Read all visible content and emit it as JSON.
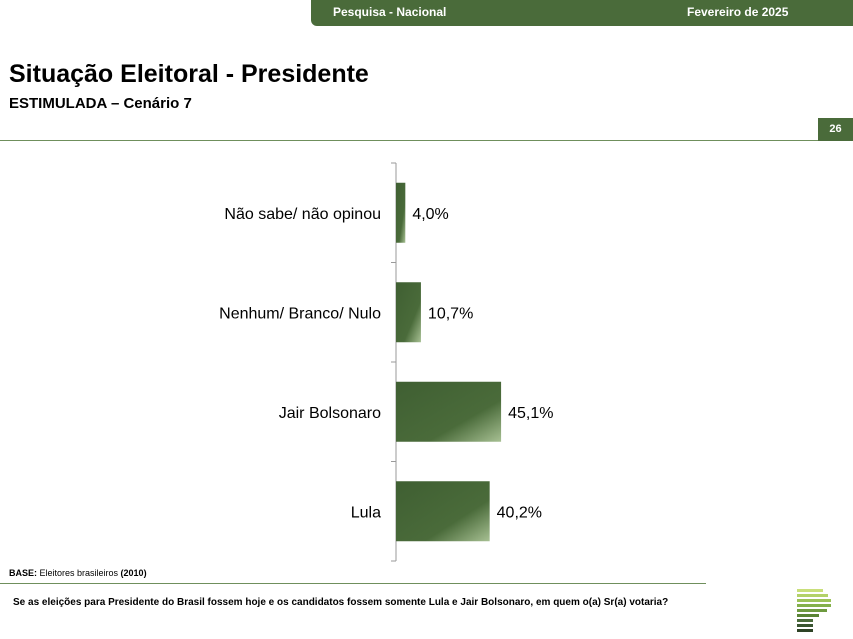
{
  "header": {
    "left_label": "Pesquisa - Nacional",
    "right_label": "Fevereiro de 2025"
  },
  "page": {
    "title": "Situação Eleitoral - Presidente",
    "subtitle": "ESTIMULADA – Cenário 7",
    "page_number": "26"
  },
  "chart_data": {
    "type": "bar",
    "orientation": "horizontal",
    "categories": [
      "Não sabe/ não opinou",
      "Nenhum/ Branco/ Nulo",
      "Jair Bolsonaro",
      "Lula"
    ],
    "values": [
      4.0,
      10.7,
      45.1,
      40.2
    ],
    "value_labels": [
      "4,0%",
      "10,7%",
      "45,1%",
      "40,2%"
    ],
    "title": "",
    "xlabel": "",
    "ylabel": "",
    "xlim": [
      0,
      100
    ],
    "grid": false,
    "legend": "none",
    "colors": {
      "bar_start": "#3f5f32",
      "bar_end": "#a7c093"
    }
  },
  "footer": {
    "base_label": "BASE:",
    "base_text": " Eleitores brasileiros ",
    "base_year": "(2010)",
    "question": "Se as eleições para Presidente do Brasil fossem hoje e os candidatos fossem somente Lula e Jair Bolsonaro, em quem o(a) Sr(a) votaria?"
  },
  "colors": {
    "brand": "#4a6b3a",
    "rule": "#6f8f5c"
  },
  "logo": {
    "icon": "striped-p-logo-icon"
  }
}
